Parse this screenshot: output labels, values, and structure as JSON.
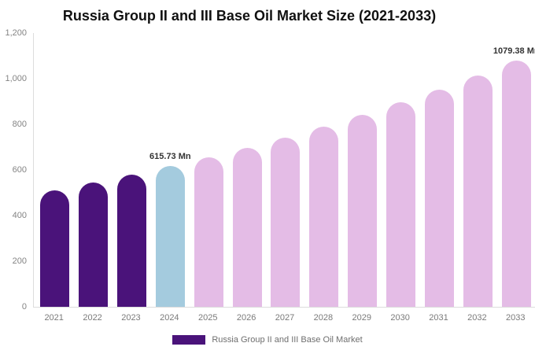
{
  "chart_data": {
    "type": "bar",
    "title": "Russia Group II and III Base Oil Market Size (2021-2033)",
    "xlabel": "",
    "ylabel": "",
    "categories": [
      "2021",
      "2022",
      "2023",
      "2024",
      "2025",
      "2026",
      "2027",
      "2028",
      "2029",
      "2030",
      "2031",
      "2032",
      "2033"
    ],
    "values": [
      511,
      544,
      579,
      615.73,
      655,
      698,
      742,
      790,
      841,
      895,
      952,
      1014,
      1079.38
    ],
    "unit": "Mn",
    "point_labels": [
      null,
      null,
      null,
      "615.73 Mn",
      null,
      null,
      null,
      null,
      null,
      null,
      null,
      null,
      "1079.38 Mn"
    ],
    "bar_colors": [
      "#4a137a",
      "#4a137a",
      "#4a137a",
      "#a4cbde",
      "#e4bce6",
      "#e4bce6",
      "#e4bce6",
      "#e4bce6",
      "#e4bce6",
      "#e4bce6",
      "#e4bce6",
      "#e4bce6",
      "#e4bce6"
    ],
    "ylim": [
      0,
      1200
    ],
    "y_ticks": [
      "0",
      "200",
      "400",
      "600",
      "800",
      "1,000",
      "1,200"
    ],
    "grid": false,
    "legend_position": "bottom",
    "legend_label": "Russia Group II and III Base Oil Market",
    "legend_swatch_color": "#4a137a",
    "colors": {
      "historical_purple": "#4a137a",
      "current_year_blue": "#a4cbde",
      "forecast_pink": "#e4bce6",
      "axis_line": "#dcdcdc",
      "axis_text": "#7a7a7a",
      "title_text": "#111111",
      "data_label_text": "#333333"
    }
  }
}
